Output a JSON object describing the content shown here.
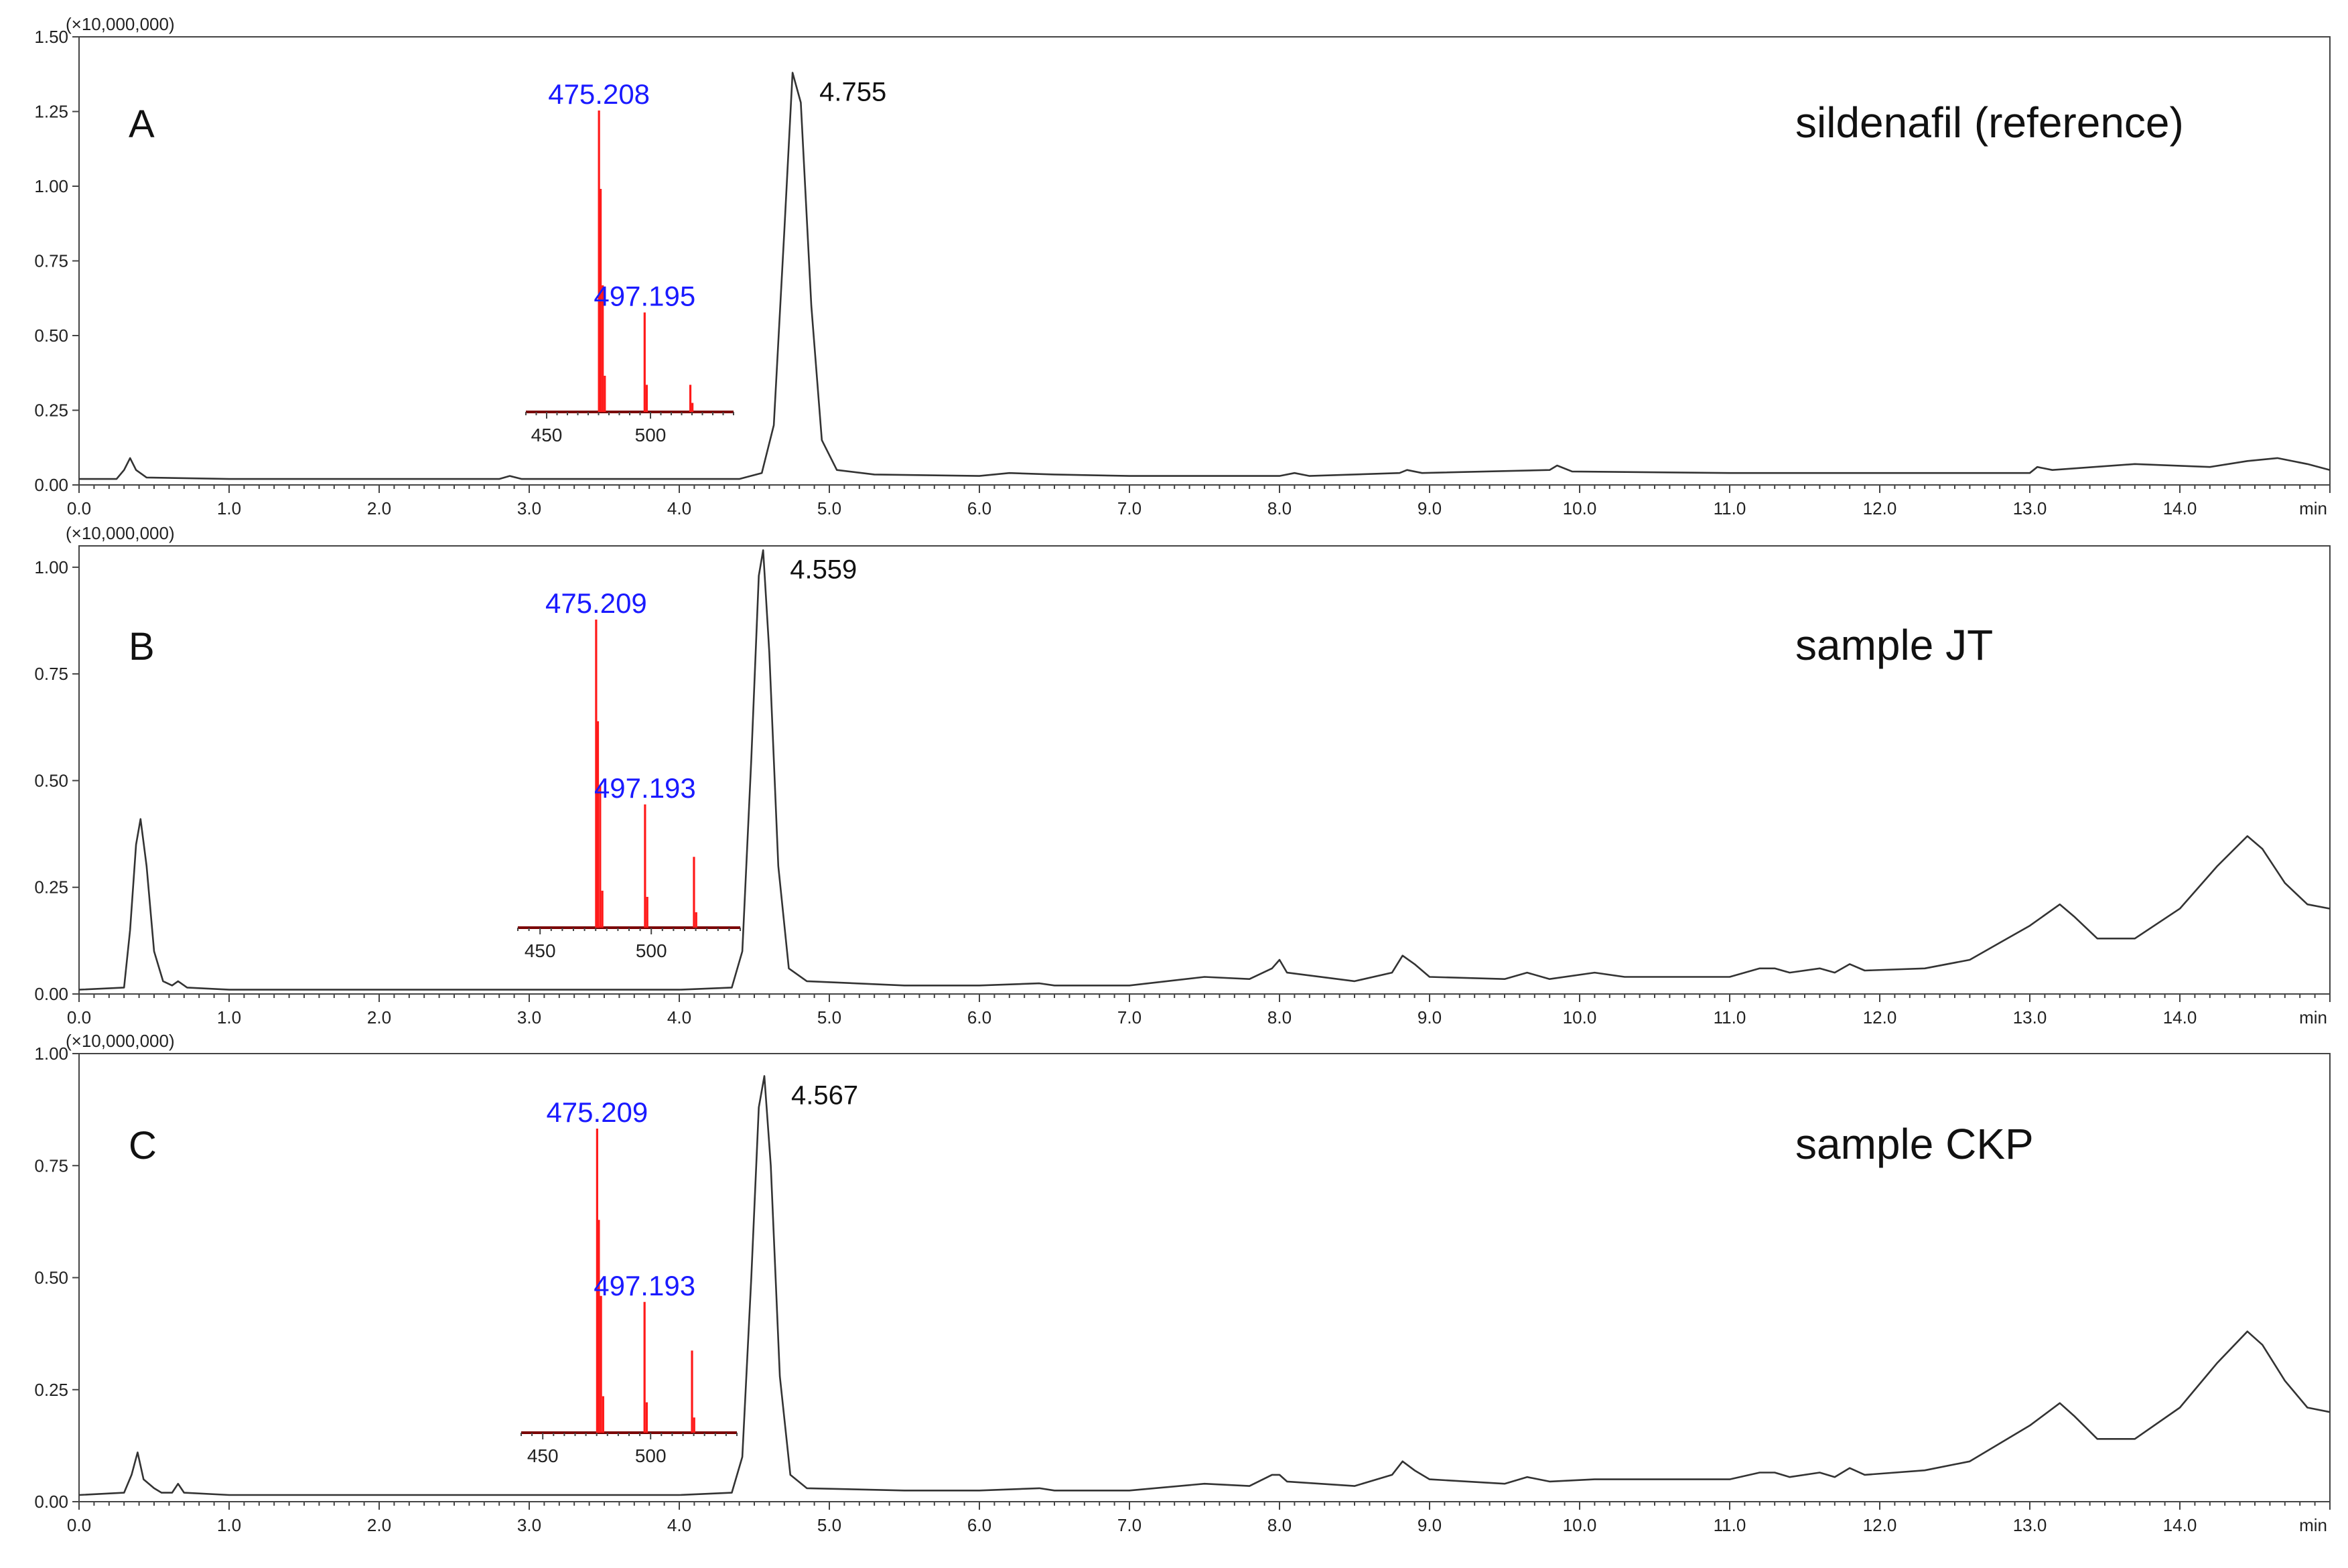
{
  "chart_data": [
    {
      "type": "line",
      "panel": "A",
      "title": "sildenafil (reference)",
      "multiplier": "(×10,000,000)",
      "xlabel": "min",
      "xlim": [
        0,
        15
      ],
      "x_ticks": [
        "0.0",
        "1.0",
        "2.0",
        "3.0",
        "4.0",
        "5.0",
        "6.0",
        "7.0",
        "8.0",
        "9.0",
        "10.0",
        "11.0",
        "12.0",
        "13.0",
        "14.0"
      ],
      "ylim": [
        0,
        1.5
      ],
      "y_ticks": [
        "0.00",
        "0.25",
        "0.50",
        "0.75",
        "1.00",
        "1.25",
        "1.50"
      ],
      "peak_label": {
        "text": "4.755",
        "x": 4.755,
        "y": 1.38
      },
      "series": [
        {
          "name": "chromatogram",
          "color": "#333333",
          "points": [
            [
              0,
              0.02
            ],
            [
              0.25,
              0.02
            ],
            [
              0.3,
              0.05
            ],
            [
              0.34,
              0.09
            ],
            [
              0.38,
              0.05
            ],
            [
              0.45,
              0.025
            ],
            [
              1.0,
              0.02
            ],
            [
              2.0,
              0.02
            ],
            [
              2.8,
              0.02
            ],
            [
              2.87,
              0.03
            ],
            [
              2.95,
              0.02
            ],
            [
              4.4,
              0.02
            ],
            [
              4.55,
              0.04
            ],
            [
              4.63,
              0.2
            ],
            [
              4.7,
              0.85
            ],
            [
              4.755,
              1.38
            ],
            [
              4.81,
              1.28
            ],
            [
              4.88,
              0.6
            ],
            [
              4.95,
              0.15
            ],
            [
              5.05,
              0.05
            ],
            [
              5.3,
              0.035
            ],
            [
              6.0,
              0.03
            ],
            [
              6.2,
              0.04
            ],
            [
              6.5,
              0.035
            ],
            [
              7.0,
              0.03
            ],
            [
              8.0,
              0.03
            ],
            [
              8.1,
              0.04
            ],
            [
              8.2,
              0.03
            ],
            [
              8.8,
              0.04
            ],
            [
              8.85,
              0.05
            ],
            [
              8.95,
              0.04
            ],
            [
              9.8,
              0.05
            ],
            [
              9.85,
              0.065
            ],
            [
              9.95,
              0.045
            ],
            [
              11.0,
              0.04
            ],
            [
              12.0,
              0.04
            ],
            [
              13.0,
              0.04
            ],
            [
              13.05,
              0.06
            ],
            [
              13.15,
              0.05
            ],
            [
              13.7,
              0.07
            ],
            [
              14.2,
              0.06
            ],
            [
              14.45,
              0.08
            ],
            [
              14.65,
              0.09
            ],
            [
              14.85,
              0.07
            ],
            [
              15.0,
              0.05
            ]
          ]
        }
      ],
      "inset": {
        "type": "bar",
        "xlim": [
          440,
          540
        ],
        "x_ticks": [
          "450",
          "500"
        ],
        "peaks": [
          {
            "mz": 475.208,
            "rel": 1.0,
            "label": "475.208"
          },
          {
            "mz": 476.0,
            "rel": 0.74
          },
          {
            "mz": 477.0,
            "rel": 0.42
          },
          {
            "mz": 478.0,
            "rel": 0.12
          },
          {
            "mz": 497.195,
            "rel": 0.33,
            "label": "497.195"
          },
          {
            "mz": 498.2,
            "rel": 0.09
          },
          {
            "mz": 519.2,
            "rel": 0.09
          },
          {
            "mz": 520.2,
            "rel": 0.03
          }
        ]
      }
    },
    {
      "type": "line",
      "panel": "B",
      "title": "sample JT",
      "multiplier": "(×10,000,000)",
      "xlabel": "min",
      "xlim": [
        0,
        15
      ],
      "x_ticks": [
        "0.0",
        "1.0",
        "2.0",
        "3.0",
        "4.0",
        "5.0",
        "6.0",
        "7.0",
        "8.0",
        "9.0",
        "10.0",
        "11.0",
        "12.0",
        "13.0",
        "14.0"
      ],
      "ylim": [
        0,
        1.05
      ],
      "y_ticks": [
        "0.00",
        "0.25",
        "0.50",
        "0.75",
        "1.00"
      ],
      "peak_label": {
        "text": "4.559",
        "x": 4.559,
        "y": 1.04
      },
      "series": [
        {
          "name": "chromatogram",
          "color": "#333333",
          "points": [
            [
              0,
              0.01
            ],
            [
              0.3,
              0.015
            ],
            [
              0.34,
              0.15
            ],
            [
              0.38,
              0.35
            ],
            [
              0.41,
              0.41
            ],
            [
              0.45,
              0.3
            ],
            [
              0.5,
              0.1
            ],
            [
              0.56,
              0.03
            ],
            [
              0.62,
              0.02
            ],
            [
              0.66,
              0.03
            ],
            [
              0.72,
              0.015
            ],
            [
              1.0,
              0.01
            ],
            [
              2.0,
              0.01
            ],
            [
              3.0,
              0.01
            ],
            [
              4.0,
              0.01
            ],
            [
              4.35,
              0.015
            ],
            [
              4.42,
              0.1
            ],
            [
              4.48,
              0.55
            ],
            [
              4.53,
              0.98
            ],
            [
              4.559,
              1.04
            ],
            [
              4.6,
              0.8
            ],
            [
              4.66,
              0.3
            ],
            [
              4.73,
              0.06
            ],
            [
              4.85,
              0.03
            ],
            [
              5.5,
              0.02
            ],
            [
              6.0,
              0.02
            ],
            [
              6.4,
              0.025
            ],
            [
              6.5,
              0.02
            ],
            [
              7.0,
              0.02
            ],
            [
              7.5,
              0.04
            ],
            [
              7.8,
              0.035
            ],
            [
              7.95,
              0.06
            ],
            [
              8.0,
              0.08
            ],
            [
              8.05,
              0.05
            ],
            [
              8.5,
              0.03
            ],
            [
              8.75,
              0.05
            ],
            [
              8.82,
              0.09
            ],
            [
              8.9,
              0.07
            ],
            [
              9.0,
              0.04
            ],
            [
              9.5,
              0.035
            ],
            [
              9.65,
              0.05
            ],
            [
              9.8,
              0.035
            ],
            [
              10.1,
              0.05
            ],
            [
              10.3,
              0.04
            ],
            [
              11.0,
              0.04
            ],
            [
              11.2,
              0.06
            ],
            [
              11.3,
              0.06
            ],
            [
              11.4,
              0.05
            ],
            [
              11.6,
              0.06
            ],
            [
              11.7,
              0.05
            ],
            [
              11.8,
              0.07
            ],
            [
              11.9,
              0.055
            ],
            [
              12.3,
              0.06
            ],
            [
              12.6,
              0.08
            ],
            [
              12.8,
              0.12
            ],
            [
              13.0,
              0.16
            ],
            [
              13.2,
              0.21
            ],
            [
              13.3,
              0.18
            ],
            [
              13.45,
              0.13
            ],
            [
              13.7,
              0.13
            ],
            [
              14.0,
              0.2
            ],
            [
              14.25,
              0.3
            ],
            [
              14.45,
              0.37
            ],
            [
              14.55,
              0.34
            ],
            [
              14.7,
              0.26
            ],
            [
              14.85,
              0.21
            ],
            [
              15.0,
              0.2
            ]
          ]
        }
      ],
      "inset": {
        "type": "bar",
        "xlim": [
          440,
          540
        ],
        "x_ticks": [
          "450",
          "500"
        ],
        "peaks": [
          {
            "mz": 475.209,
            "rel": 1.0,
            "label": "475.209"
          },
          {
            "mz": 476.0,
            "rel": 0.67
          },
          {
            "mz": 477.0,
            "rel": 0.46
          },
          {
            "mz": 478.0,
            "rel": 0.12
          },
          {
            "mz": 497.193,
            "rel": 0.4,
            "label": "497.193"
          },
          {
            "mz": 498.2,
            "rel": 0.1
          },
          {
            "mz": 519.2,
            "rel": 0.23
          },
          {
            "mz": 520.2,
            "rel": 0.05
          }
        ]
      }
    },
    {
      "type": "line",
      "panel": "C",
      "title": "sample CKP",
      "multiplier": "(×10,000,000)",
      "xlabel": "min",
      "xlim": [
        0,
        15
      ],
      "x_ticks": [
        "0.0",
        "1.0",
        "2.0",
        "3.0",
        "4.0",
        "5.0",
        "6.0",
        "7.0",
        "8.0",
        "9.0",
        "10.0",
        "11.0",
        "12.0",
        "13.0",
        "14.0"
      ],
      "ylim": [
        0,
        1.0
      ],
      "y_ticks": [
        "0.00",
        "0.25",
        "0.50",
        "0.75",
        "1.00"
      ],
      "peak_label": {
        "text": "4.567",
        "x": 4.567,
        "y": 0.95
      },
      "series": [
        {
          "name": "chromatogram",
          "color": "#333333",
          "points": [
            [
              0,
              0.015
            ],
            [
              0.3,
              0.02
            ],
            [
              0.35,
              0.06
            ],
            [
              0.39,
              0.11
            ],
            [
              0.43,
              0.05
            ],
            [
              0.5,
              0.03
            ],
            [
              0.55,
              0.02
            ],
            [
              0.62,
              0.02
            ],
            [
              0.66,
              0.04
            ],
            [
              0.7,
              0.02
            ],
            [
              1.0,
              0.015
            ],
            [
              2.0,
              0.015
            ],
            [
              3.0,
              0.015
            ],
            [
              4.0,
              0.015
            ],
            [
              4.35,
              0.02
            ],
            [
              4.42,
              0.1
            ],
            [
              4.48,
              0.5
            ],
            [
              4.53,
              0.88
            ],
            [
              4.567,
              0.95
            ],
            [
              4.61,
              0.75
            ],
            [
              4.67,
              0.28
            ],
            [
              4.74,
              0.06
            ],
            [
              4.85,
              0.03
            ],
            [
              5.5,
              0.025
            ],
            [
              6.0,
              0.025
            ],
            [
              6.4,
              0.03
            ],
            [
              6.5,
              0.025
            ],
            [
              7.0,
              0.025
            ],
            [
              7.5,
              0.04
            ],
            [
              7.8,
              0.035
            ],
            [
              7.95,
              0.06
            ],
            [
              8.0,
              0.06
            ],
            [
              8.05,
              0.045
            ],
            [
              8.5,
              0.035
            ],
            [
              8.75,
              0.06
            ],
            [
              8.82,
              0.09
            ],
            [
              8.9,
              0.07
            ],
            [
              9.0,
              0.05
            ],
            [
              9.5,
              0.04
            ],
            [
              9.65,
              0.055
            ],
            [
              9.8,
              0.045
            ],
            [
              10.1,
              0.05
            ],
            [
              10.3,
              0.05
            ],
            [
              11.0,
              0.05
            ],
            [
              11.2,
              0.065
            ],
            [
              11.3,
              0.065
            ],
            [
              11.4,
              0.055
            ],
            [
              11.6,
              0.065
            ],
            [
              11.7,
              0.055
            ],
            [
              11.8,
              0.075
            ],
            [
              11.9,
              0.06
            ],
            [
              12.3,
              0.07
            ],
            [
              12.6,
              0.09
            ],
            [
              12.8,
              0.13
            ],
            [
              13.0,
              0.17
            ],
            [
              13.2,
              0.22
            ],
            [
              13.3,
              0.19
            ],
            [
              13.45,
              0.14
            ],
            [
              13.7,
              0.14
            ],
            [
              14.0,
              0.21
            ],
            [
              14.25,
              0.31
            ],
            [
              14.45,
              0.38
            ],
            [
              14.55,
              0.35
            ],
            [
              14.7,
              0.27
            ],
            [
              14.85,
              0.21
            ],
            [
              15.0,
              0.2
            ]
          ]
        }
      ],
      "inset": {
        "type": "bar",
        "xlim": [
          440,
          540
        ],
        "x_ticks": [
          "450",
          "500"
        ],
        "peaks": [
          {
            "mz": 475.209,
            "rel": 1.0,
            "label": "475.209"
          },
          {
            "mz": 476.0,
            "rel": 0.7
          },
          {
            "mz": 477.0,
            "rel": 0.45
          },
          {
            "mz": 478.0,
            "rel": 0.12
          },
          {
            "mz": 497.193,
            "rel": 0.43,
            "label": "497.193"
          },
          {
            "mz": 498.2,
            "rel": 0.1
          },
          {
            "mz": 519.2,
            "rel": 0.27
          },
          {
            "mz": 520.2,
            "rel": 0.05
          }
        ]
      }
    }
  ]
}
